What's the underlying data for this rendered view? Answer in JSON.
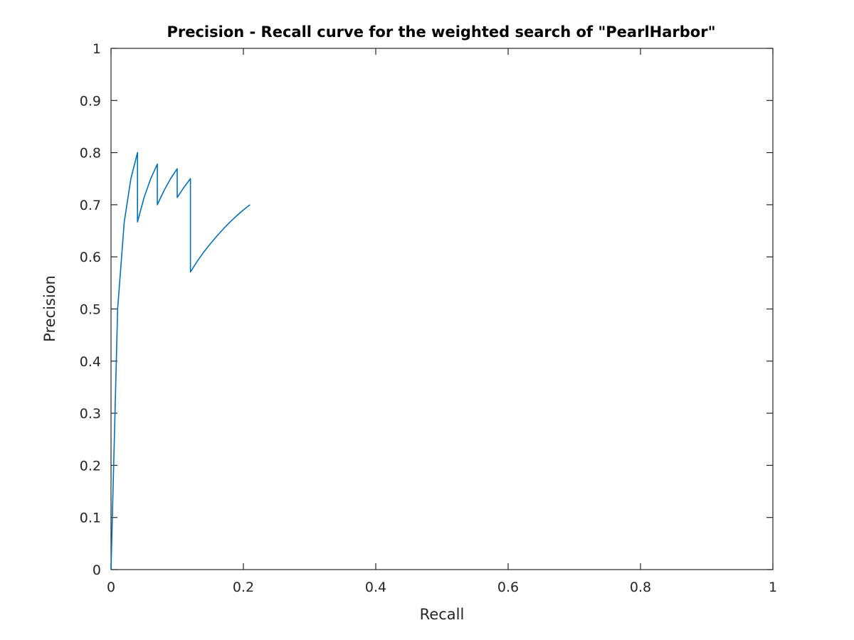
{
  "chart_data": {
    "type": "line",
    "title": "Precision - Recall curve for the weighted search of \"PearlHarbor\"",
    "xlabel": "Recall",
    "ylabel": "Precision",
    "xlim": [
      0,
      1
    ],
    "ylim": [
      0,
      1
    ],
    "xticks": [
      0,
      0.2,
      0.4,
      0.6,
      0.8,
      1
    ],
    "xtick_labels": [
      "0",
      "0.2",
      "0.4",
      "0.6",
      "0.8",
      "1"
    ],
    "yticks": [
      0,
      0.1,
      0.2,
      0.3,
      0.4,
      0.5,
      0.6,
      0.7,
      0.8,
      0.9,
      1
    ],
    "ytick_labels": [
      "0",
      "0.1",
      "0.2",
      "0.3",
      "0.4",
      "0.5",
      "0.6",
      "0.7",
      "0.8",
      "0.9",
      "1"
    ],
    "grid": false,
    "legend": "none",
    "color": "#0072bd",
    "series": [
      {
        "x": [
          0,
          0.01,
          0.02,
          0.03,
          0.04,
          0.04,
          0.05,
          0.06,
          0.07,
          0.07,
          0.08,
          0.09,
          0.1,
          0.1,
          0.11,
          0.12,
          0.12,
          0.13,
          0.14,
          0.15,
          0.16,
          0.17,
          0.18,
          0.19,
          0.2,
          0.21
        ],
        "y": [
          0,
          0.5,
          0.667,
          0.75,
          0.8,
          0.667,
          0.714,
          0.75,
          0.778,
          0.7,
          0.727,
          0.75,
          0.769,
          0.714,
          0.733,
          0.75,
          0.571,
          0.591,
          0.609,
          0.625,
          0.64,
          0.654,
          0.667,
          0.679,
          0.69,
          0.7
        ]
      }
    ]
  }
}
